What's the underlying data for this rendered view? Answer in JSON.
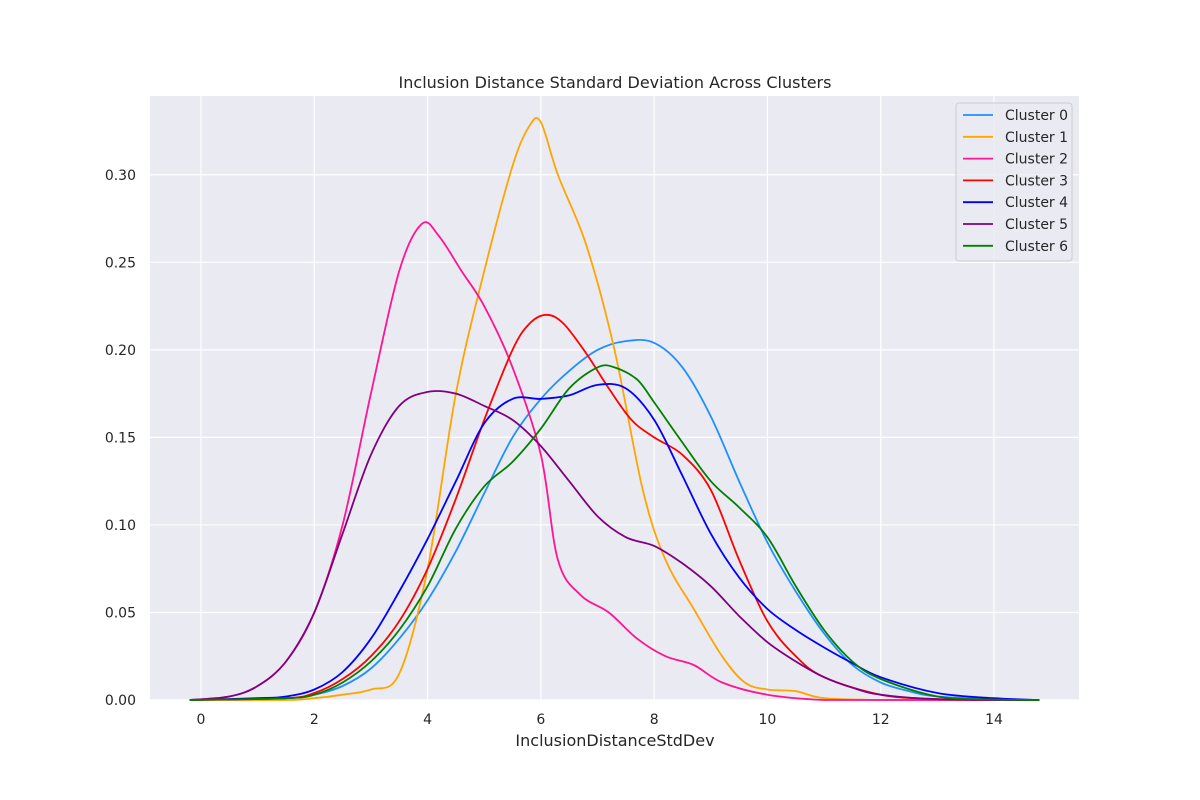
{
  "chart_data": {
    "type": "line",
    "title": "Inclusion Distance Standard Deviation Across Clusters",
    "xlabel": "InclusionDistanceStdDev",
    "ylabel": "",
    "xlim": [
      -0.9,
      15.5
    ],
    "ylim": [
      0,
      0.345
    ],
    "x_ticks": [
      0,
      2,
      4,
      6,
      8,
      10,
      12,
      14
    ],
    "y_ticks": [
      0.0,
      0.05,
      0.1,
      0.15,
      0.2,
      0.25,
      0.3
    ],
    "x_tick_labels": [
      "0",
      "2",
      "4",
      "6",
      "8",
      "10",
      "12",
      "14"
    ],
    "y_tick_labels": [
      "0.00",
      "0.05",
      "0.10",
      "0.15",
      "0.20",
      "0.25",
      "0.30"
    ],
    "grid": true,
    "legend_position": "top-right",
    "background_color": "#eaeaf2",
    "grid_color": "#ffffff",
    "series": [
      {
        "name": "Cluster 0",
        "color": "#1e90ff",
        "x": [
          -0.2,
          1.5,
          2.0,
          2.5,
          3.0,
          3.5,
          4.0,
          4.5,
          5.0,
          5.5,
          6.0,
          6.5,
          7.0,
          7.5,
          8.0,
          8.5,
          9.0,
          9.5,
          10.0,
          10.5,
          11.0,
          11.5,
          12.0,
          12.5,
          13.0,
          14.0,
          14.8
        ],
        "y": [
          0.0,
          0.001,
          0.003,
          0.008,
          0.018,
          0.035,
          0.057,
          0.085,
          0.118,
          0.15,
          0.172,
          0.188,
          0.2,
          0.205,
          0.204,
          0.19,
          0.162,
          0.125,
          0.09,
          0.062,
          0.038,
          0.02,
          0.01,
          0.005,
          0.002,
          0.0005,
          0.0
        ]
      },
      {
        "name": "Cluster 1",
        "color": "#ffa500",
        "x": [
          -0.2,
          1.5,
          2.0,
          2.5,
          3.0,
          3.5,
          4.0,
          4.5,
          5.0,
          5.5,
          5.8,
          6.0,
          6.3,
          6.8,
          7.3,
          7.8,
          8.2,
          8.7,
          9.2,
          9.6,
          10.0,
          10.5,
          11.0,
          12.0,
          13.0,
          14.0,
          14.8
        ],
        "y": [
          0.0,
          0.0,
          0.001,
          0.003,
          0.006,
          0.015,
          0.075,
          0.175,
          0.245,
          0.305,
          0.328,
          0.33,
          0.3,
          0.26,
          0.2,
          0.12,
          0.08,
          0.052,
          0.025,
          0.01,
          0.006,
          0.005,
          0.001,
          0.0,
          0.0,
          0.0,
          0.0
        ]
      },
      {
        "name": "Cluster 2",
        "color": "#ff1493",
        "x": [
          -0.2,
          0.5,
          1.0,
          1.5,
          2.0,
          2.5,
          3.0,
          3.5,
          3.9,
          4.2,
          4.6,
          5.0,
          5.5,
          6.0,
          6.3,
          6.7,
          7.2,
          7.7,
          8.2,
          8.7,
          9.2,
          10.0,
          11.0,
          12.0,
          13.0,
          14.0,
          14.8
        ],
        "y": [
          0.0,
          0.002,
          0.008,
          0.022,
          0.05,
          0.1,
          0.175,
          0.245,
          0.272,
          0.265,
          0.245,
          0.225,
          0.19,
          0.14,
          0.08,
          0.06,
          0.05,
          0.035,
          0.025,
          0.02,
          0.01,
          0.003,
          0.0,
          0.0,
          0.0,
          0.0,
          0.0
        ]
      },
      {
        "name": "Cluster 3",
        "color": "#ff0000",
        "x": [
          -0.2,
          1.5,
          2.0,
          2.5,
          3.0,
          3.5,
          4.0,
          4.5,
          5.0,
          5.5,
          5.8,
          6.1,
          6.4,
          6.8,
          7.2,
          7.6,
          8.0,
          8.5,
          9.0,
          9.5,
          10.0,
          10.5,
          11.0,
          12.0,
          13.0,
          14.0,
          14.8
        ],
        "y": [
          0.0,
          0.001,
          0.004,
          0.012,
          0.025,
          0.045,
          0.075,
          0.115,
          0.16,
          0.2,
          0.215,
          0.22,
          0.215,
          0.198,
          0.178,
          0.16,
          0.15,
          0.14,
          0.12,
          0.08,
          0.045,
          0.025,
          0.013,
          0.003,
          0.0005,
          0.0,
          0.0
        ]
      },
      {
        "name": "Cluster 4",
        "color": "#0000ff",
        "x": [
          -0.2,
          1.0,
          1.5,
          2.0,
          2.5,
          3.0,
          3.5,
          4.0,
          4.5,
          5.0,
          5.5,
          6.0,
          6.5,
          7.0,
          7.5,
          8.0,
          8.5,
          9.0,
          9.5,
          10.0,
          10.5,
          11.0,
          11.5,
          12.0,
          13.0,
          14.0,
          14.8
        ],
        "y": [
          0.0,
          0.001,
          0.002,
          0.006,
          0.016,
          0.035,
          0.062,
          0.092,
          0.125,
          0.158,
          0.172,
          0.172,
          0.174,
          0.18,
          0.178,
          0.16,
          0.128,
          0.095,
          0.07,
          0.052,
          0.04,
          0.03,
          0.021,
          0.013,
          0.004,
          0.001,
          0.0
        ]
      },
      {
        "name": "Cluster 5",
        "color": "#800080",
        "x": [
          -0.2,
          0.5,
          1.0,
          1.5,
          2.0,
          2.5,
          3.0,
          3.5,
          4.0,
          4.5,
          5.0,
          5.5,
          6.0,
          6.5,
          7.0,
          7.5,
          8.0,
          8.5,
          9.0,
          9.5,
          10.0,
          10.5,
          11.0,
          11.5,
          12.0,
          13.0,
          14.8
        ],
        "y": [
          0.0,
          0.002,
          0.008,
          0.022,
          0.05,
          0.095,
          0.14,
          0.168,
          0.176,
          0.175,
          0.168,
          0.16,
          0.145,
          0.125,
          0.105,
          0.093,
          0.088,
          0.078,
          0.065,
          0.048,
          0.033,
          0.022,
          0.013,
          0.007,
          0.003,
          0.0005,
          0.0
        ]
      },
      {
        "name": "Cluster 6",
        "color": "#008000",
        "x": [
          -0.2,
          1.5,
          2.0,
          2.5,
          3.0,
          3.5,
          4.0,
          4.5,
          5.0,
          5.5,
          6.0,
          6.5,
          7.0,
          7.3,
          7.7,
          8.0,
          8.5,
          9.0,
          9.5,
          10.0,
          10.5,
          11.0,
          11.5,
          12.0,
          13.0,
          14.0,
          14.8
        ],
        "y": [
          0.0,
          0.001,
          0.003,
          0.01,
          0.022,
          0.04,
          0.065,
          0.098,
          0.122,
          0.136,
          0.155,
          0.178,
          0.19,
          0.19,
          0.183,
          0.17,
          0.147,
          0.125,
          0.11,
          0.093,
          0.065,
          0.04,
          0.022,
          0.012,
          0.002,
          0.0003,
          0.0
        ]
      }
    ]
  }
}
